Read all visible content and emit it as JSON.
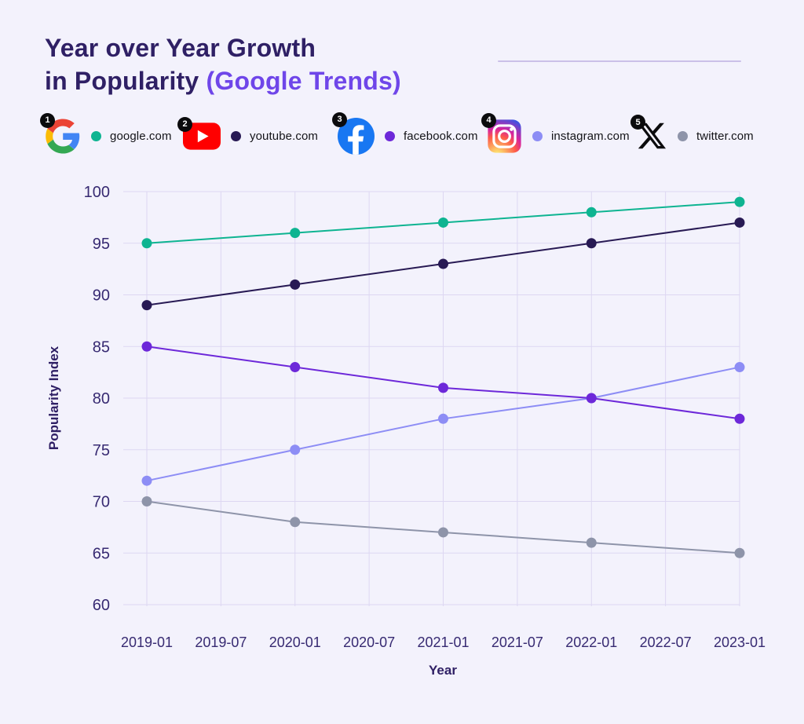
{
  "header": {
    "title_line1": "Year over Year Growth",
    "title_line2": "in Popularity ",
    "title_accent": "(Google Trends)"
  },
  "legend": {
    "items": [
      {
        "badge": "1",
        "icon": "google-logo",
        "label": "google.com",
        "color": "#0eb491"
      },
      {
        "badge": "2",
        "icon": "youtube-logo",
        "label": "youtube.com",
        "color": "#281a54"
      },
      {
        "badge": "3",
        "icon": "facebook-logo",
        "label": "facebook.com",
        "color": "#6d28d9"
      },
      {
        "badge": "4",
        "icon": "instagram-logo",
        "label": "instagram.com",
        "color": "#8d8df5"
      },
      {
        "badge": "5",
        "icon": "x-logo",
        "label": "twitter.com",
        "color": "#8e94a9"
      }
    ]
  },
  "chart_data": {
    "type": "line",
    "title": "Year over Year Growth in Popularity (Google Trends)",
    "xlabel": "Year",
    "ylabel": "Popularity Index",
    "x_ticks": [
      "2019-01",
      "2019-07",
      "2020-01",
      "2020-07",
      "2021-01",
      "2021-07",
      "2022-01",
      "2022-07",
      "2023-01"
    ],
    "y_ticks": [
      100,
      95,
      90,
      85,
      80,
      75,
      70,
      65,
      60
    ],
    "ylim": [
      60,
      100
    ],
    "grid": true,
    "legend_position": "top",
    "x": [
      "2019-01",
      "2020-01",
      "2021-01",
      "2022-01",
      "2023-01"
    ],
    "series": [
      {
        "name": "google.com",
        "color": "#0eb491",
        "values": [
          95,
          96,
          97,
          98,
          99
        ]
      },
      {
        "name": "youtube.com",
        "color": "#281a54",
        "values": [
          89,
          91,
          93,
          95,
          97
        ]
      },
      {
        "name": "facebook.com",
        "color": "#6d28d9",
        "values": [
          85,
          83,
          81,
          80,
          78
        ]
      },
      {
        "name": "instagram.com",
        "color": "#8d8df5",
        "values": [
          72,
          75,
          78,
          80,
          83
        ]
      },
      {
        "name": "twitter.com",
        "color": "#8e94a9",
        "values": [
          70,
          68,
          67,
          66,
          65
        ]
      }
    ]
  }
}
